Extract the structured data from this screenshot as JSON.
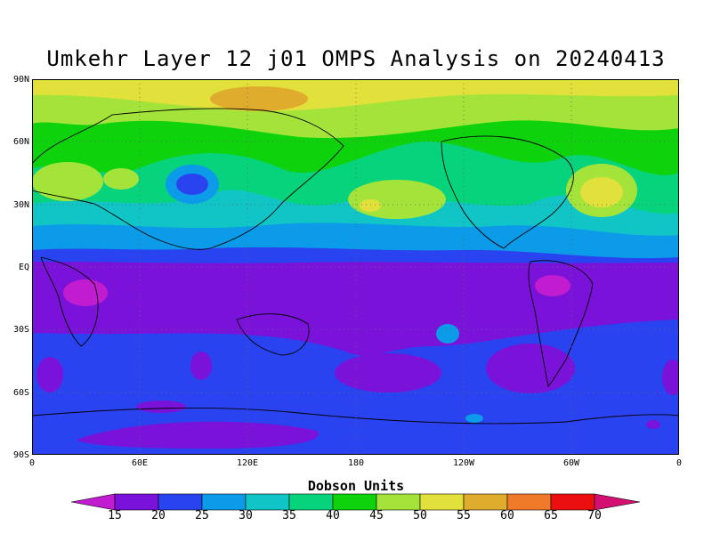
{
  "title": "Umkehr Layer 12 j01 OMPS Analysis on 20240413",
  "map": {
    "lat_labels": [
      "90N",
      "60N",
      "30N",
      "EQ",
      "30S",
      "60S",
      "90S"
    ],
    "lon_labels": [
      "0",
      "60E",
      "120E",
      "180",
      "120W",
      "60W",
      "0"
    ],
    "grid": "dotted"
  },
  "colorbar": {
    "units_label": "Dobson Units",
    "levels": [
      "15",
      "20",
      "25",
      "30",
      "35",
      "40",
      "45",
      "50",
      "55",
      "60",
      "65",
      "70"
    ],
    "colors": [
      "#c21cd0",
      "#7a12d9",
      "#2a43f0",
      "#0b9be8",
      "#11c5c6",
      "#06d37c",
      "#0ed20b",
      "#a4e43a",
      "#e2e03a",
      "#e0ac2e",
      "#ef7a2a",
      "#ec0f0f",
      "#d40f72"
    ]
  }
}
